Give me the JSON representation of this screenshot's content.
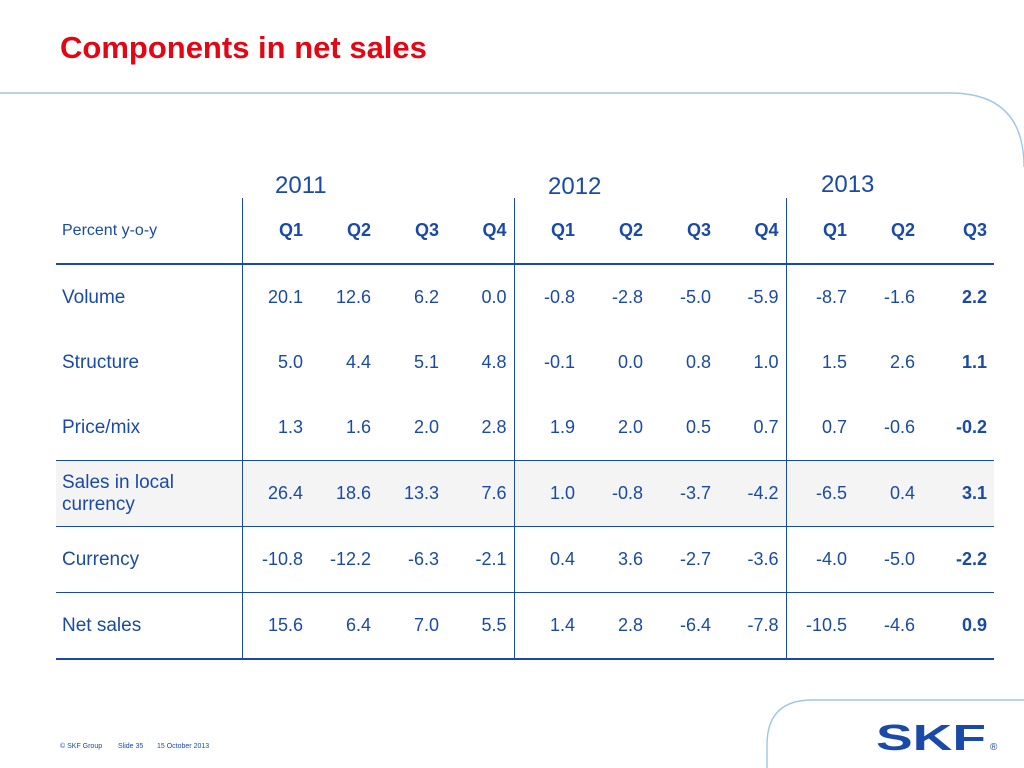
{
  "title": "Components in net sales",
  "years": [
    "2011",
    "2012",
    "2013"
  ],
  "table": {
    "header_label": "Percent y-o-y",
    "quarters": [
      "Q1",
      "Q2",
      "Q3",
      "Q4",
      "Q1",
      "Q2",
      "Q3",
      "Q4",
      "Q1",
      "Q2",
      "Q3"
    ],
    "rows": [
      {
        "label": "Volume",
        "values": [
          "20.1",
          "12.6",
          "6.2",
          "0.0",
          "-0.8",
          "-2.8",
          "-5.0",
          "-5.9",
          "-8.7",
          "-1.6",
          "2.2"
        ]
      },
      {
        "label": "Structure",
        "values": [
          "5.0",
          "4.4",
          "5.1",
          "4.8",
          "-0.1",
          "0.0",
          "0.8",
          "1.0",
          "1.5",
          "2.6",
          "1.1"
        ]
      },
      {
        "label": "Price/mix",
        "values": [
          "1.3",
          "1.6",
          "2.0",
          "2.8",
          "1.9",
          "2.0",
          "0.5",
          "0.7",
          "0.7",
          "-0.6",
          "-0.2"
        ]
      },
      {
        "label": "Sales in local currency",
        "values": [
          "26.4",
          "18.6",
          "13.3",
          "7.6",
          "1.0",
          "-0.8",
          "-3.7",
          "-4.2",
          "-6.5",
          "0.4",
          "3.1"
        ]
      },
      {
        "label": "Currency",
        "values": [
          "-10.8",
          "-12.2",
          "-6.3",
          "-2.1",
          "0.4",
          "3.6",
          "-2.7",
          "-3.6",
          "-4.0",
          "-5.0",
          "-2.2"
        ]
      },
      {
        "label": "Net sales",
        "values": [
          "15.6",
          "6.4",
          "7.0",
          "5.5",
          "1.4",
          "2.8",
          "-6.4",
          "-7.8",
          "-10.5",
          "-4.6",
          "0.9"
        ]
      }
    ]
  },
  "footer": {
    "copyright": "© SKF Group",
    "slide": "Slide 35",
    "date": "15 October 2013"
  },
  "logo": {
    "text": "SKF",
    "mark": "®"
  },
  "colors": {
    "title": "#e30613",
    "text": "#1a4aa8",
    "line": "#1a4aa8"
  }
}
